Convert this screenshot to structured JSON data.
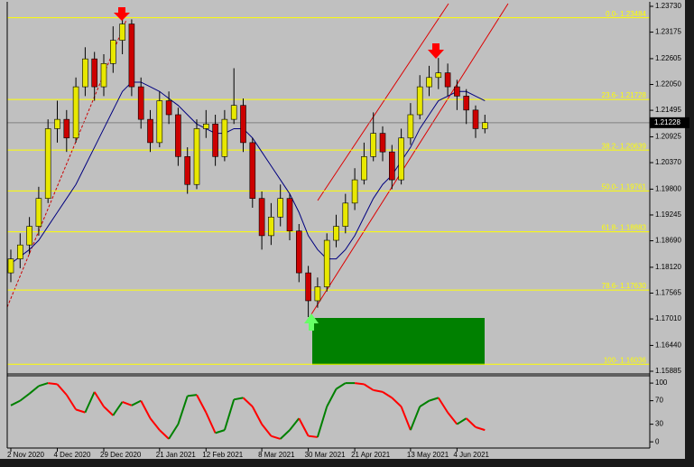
{
  "chart_data": {
    "type": "candlestick",
    "categories": [
      "2 Nov 2020",
      null,
      null,
      null,
      null,
      "4 Dec 2020",
      null,
      null,
      null,
      null,
      "29 Dec 2020",
      null,
      null,
      null,
      null,
      null,
      "21 Jan 2021",
      null,
      null,
      null,
      null,
      "12 Feb 2021",
      null,
      null,
      null,
      null,
      null,
      "8 Mar 2021",
      null,
      null,
      null,
      null,
      "30 Mar 2021",
      null,
      null,
      null,
      null,
      "21 Apr 2021",
      null,
      null,
      null,
      null,
      null,
      "13 May 2021",
      null,
      null,
      null,
      null,
      "4 Jun 2021",
      null,
      null,
      null
    ],
    "open": [
      1.18,
      1.183,
      1.186,
      1.19,
      1.196,
      1.211,
      1.213,
      1.209,
      1.22,
      1.226,
      1.22,
      1.225,
      1.23,
      1.2335,
      1.22,
      1.213,
      1.208,
      1.217,
      1.214,
      1.205,
      1.199,
      1.211,
      1.212,
      1.205,
      1.213,
      1.216,
      1.208,
      1.196,
      1.188,
      1.192,
      1.196,
      1.189,
      1.18,
      1.174,
      1.177,
      1.187,
      1.19,
      1.195,
      1.2,
      1.205,
      1.21,
      1.206,
      1.2,
      1.209,
      1.214,
      1.22,
      1.222,
      1.223,
      1.22,
      1.218,
      1.215,
      1.211
    ],
    "high": [
      1.185,
      1.1885,
      1.192,
      1.1985,
      1.213,
      1.217,
      1.215,
      1.222,
      1.2285,
      1.2275,
      1.227,
      1.233,
      1.2348,
      1.2345,
      1.222,
      1.215,
      1.219,
      1.219,
      1.2155,
      1.207,
      1.213,
      1.215,
      1.214,
      1.215,
      1.224,
      1.2175,
      1.209,
      1.1975,
      1.195,
      1.199,
      1.197,
      1.1905,
      1.1815,
      1.179,
      1.1885,
      1.1925,
      1.197,
      1.2025,
      1.208,
      1.2145,
      1.2115,
      1.2075,
      1.211,
      1.2165,
      1.2225,
      1.2245,
      1.2262,
      1.225,
      1.2215,
      1.2195,
      1.216,
      1.214
    ],
    "low": [
      1.178,
      1.181,
      1.184,
      1.188,
      1.195,
      1.208,
      1.206,
      1.208,
      1.218,
      1.217,
      1.218,
      1.223,
      1.227,
      1.218,
      1.211,
      1.206,
      1.207,
      1.212,
      1.203,
      1.197,
      1.198,
      1.209,
      1.203,
      1.204,
      1.212,
      1.206,
      1.194,
      1.185,
      1.186,
      1.19,
      1.187,
      1.178,
      1.1705,
      1.1725,
      1.176,
      1.1855,
      1.1885,
      1.1935,
      1.199,
      1.204,
      1.204,
      1.198,
      1.199,
      1.2075,
      1.213,
      1.218,
      1.2195,
      1.218,
      1.215,
      1.212,
      1.209,
      1.21
    ],
    "close": [
      1.183,
      1.186,
      1.19,
      1.196,
      1.211,
      1.213,
      1.209,
      1.22,
      1.226,
      1.22,
      1.225,
      1.23,
      1.2335,
      1.22,
      1.213,
      1.208,
      1.217,
      1.214,
      1.205,
      1.199,
      1.211,
      1.212,
      1.205,
      1.213,
      1.216,
      1.208,
      1.196,
      1.188,
      1.192,
      1.196,
      1.189,
      1.18,
      1.174,
      1.177,
      1.187,
      1.19,
      1.195,
      1.2,
      1.205,
      1.21,
      1.206,
      1.2,
      1.209,
      1.214,
      1.22,
      1.222,
      1.223,
      1.22,
      1.218,
      1.215,
      1.211,
      1.2123
    ],
    "up_color": "#e8e800",
    "down_color": "#cc0000",
    "wick_color": "#000000",
    "moving_average": {
      "color": "#00007f",
      "values": [
        1.182,
        1.1835,
        1.185,
        1.187,
        1.19,
        1.193,
        1.196,
        1.199,
        1.203,
        1.207,
        1.211,
        1.215,
        1.219,
        1.221,
        1.221,
        1.22,
        1.219,
        1.2175,
        1.216,
        1.214,
        1.212,
        1.211,
        1.21,
        1.21,
        1.211,
        1.211,
        1.209,
        1.206,
        1.203,
        1.2,
        1.197,
        1.193,
        1.188,
        1.185,
        1.183,
        1.183,
        1.185,
        1.188,
        1.192,
        1.196,
        1.199,
        1.201,
        1.204,
        1.207,
        1.211,
        1.214,
        1.217,
        1.218,
        1.219,
        1.219,
        1.218,
        1.217
      ]
    },
    "ylim": [
      1.15885,
      1.2373
    ],
    "yticks": [
      {
        "value": 1.2373,
        "label": "1.23730"
      },
      1.23175,
      1.22605,
      {
        "value": 1.2205,
        "label": "1.22050"
      },
      1.21495,
      1.20925,
      {
        "value": 1.2037,
        "label": "1.20370"
      },
      {
        "value": 1.198,
        "label": "1.19800"
      },
      1.19245,
      {
        "value": 1.1869,
        "label": "1.18690"
      },
      {
        "value": 1.1812,
        "label": "1.18120"
      },
      1.17565,
      {
        "value": 1.1701,
        "label": "1.17010"
      },
      {
        "value": 1.1644,
        "label": "1.16440"
      },
      1.15885
    ],
    "last_price": 1.21228,
    "fib_color": "#ffff00",
    "fib_levels": [
      {
        "value": 1.23484,
        "label": "0.0- 1.23484"
      },
      {
        "value": 1.21728,
        "label": "23.6- 1.21728"
      },
      {
        "value": 1.20639,
        "label": "38.2- 1.20639"
      },
      {
        "value": 1.19761,
        "label": "50.0- 1.19761"
      },
      {
        "value": 1.18883,
        "label": "61.8- 1.18883"
      },
      {
        "value": 1.1763,
        "label": "78.6- 1.17630"
      },
      {
        "value": 1.16036,
        "label": "100- 1.16036"
      }
    ],
    "oscillator": {
      "values": [
        62,
        70,
        82,
        95,
        100,
        98,
        80,
        55,
        50,
        85,
        60,
        45,
        68,
        62,
        70,
        40,
        20,
        5,
        30,
        78,
        80,
        50,
        15,
        20,
        72,
        75,
        60,
        30,
        10,
        5,
        20,
        40,
        10,
        8,
        60,
        90,
        100,
        100,
        98,
        88,
        85,
        75,
        60,
        20,
        60,
        70,
        75,
        50,
        30,
        40,
        25,
        20
      ],
      "up_color": "#008000",
      "down_color": "#ff0000",
      "ylim": [
        -9,
        114
      ],
      "yticks": [
        100,
        70,
        30,
        0
      ]
    }
  }
}
